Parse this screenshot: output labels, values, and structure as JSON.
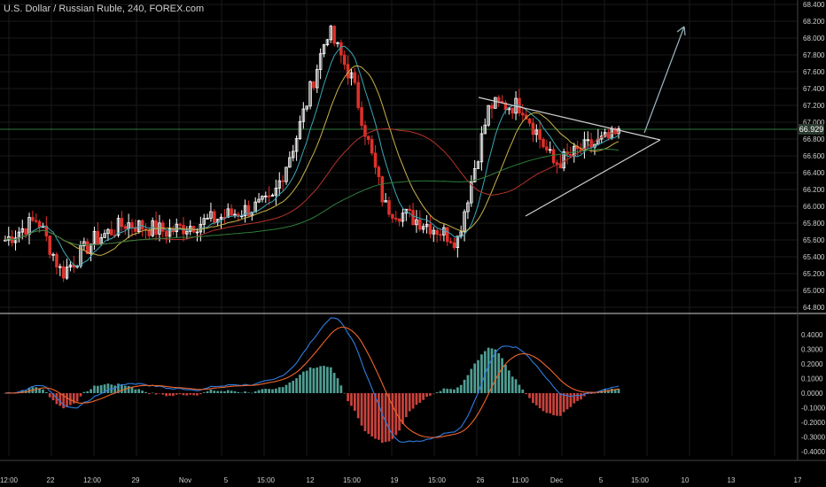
{
  "header": {
    "title": "U.S. Dollar / Russian Ruble, 240, FOREX.com"
  },
  "last_price_label": "66.929",
  "colors": {
    "up": "#ffffff",
    "down": "#e0312b",
    "ma1": "#3ba6b8",
    "ma2": "#c8b44a",
    "ma3": "#b5322b",
    "ma4": "#2e7d3a",
    "macd": "#2f7de1",
    "signal": "#f0652a",
    "hist_pos": "#4f9e93",
    "hist_neg": "#c9423c",
    "trendline": "#cfcfcf",
    "grid": "#1a1a1a"
  },
  "chart_data": [
    {
      "type": "candlestick",
      "title": "U.S. Dollar / Russian Ruble, 240, FOREX.com",
      "y_ticks": [
        "64.800",
        "65.000",
        "65.200",
        "65.400",
        "65.600",
        "65.800",
        "66.000",
        "66.200",
        "66.400",
        "66.600",
        "66.800",
        "67.000",
        "67.200",
        "67.400",
        "67.600",
        "67.800",
        "68.000",
        "68.200",
        "68.400"
      ],
      "ylim": [
        64.8,
        68.4
      ],
      "last_price": 66.929,
      "x_ticks": [
        "12:00",
        "22",
        "12:00",
        "29",
        "Nov",
        "5",
        "15:00",
        "12",
        "15:00",
        "19",
        "15:00",
        "26",
        "11:00",
        "Dec",
        "5",
        "15:00",
        "10",
        "13",
        "17"
      ],
      "series_outline": [
        {
          "t": 0,
          "price": 65.6
        },
        {
          "t": 0.04,
          "price": 65.85
        },
        {
          "t": 0.07,
          "price": 65.2
        },
        {
          "t": 0.11,
          "price": 65.6
        },
        {
          "t": 0.15,
          "price": 65.8
        },
        {
          "t": 0.2,
          "price": 65.7
        },
        {
          "t": 0.26,
          "price": 65.85
        },
        {
          "t": 0.33,
          "price": 66.05
        },
        {
          "t": 0.36,
          "price": 66.8
        },
        {
          "t": 0.4,
          "price": 68.1
        },
        {
          "t": 0.43,
          "price": 67.5
        },
        {
          "t": 0.47,
          "price": 66.0
        },
        {
          "t": 0.52,
          "price": 65.8
        },
        {
          "t": 0.56,
          "price": 65.6
        },
        {
          "t": 0.6,
          "price": 67.2
        },
        {
          "t": 0.64,
          "price": 67.2
        },
        {
          "t": 0.68,
          "price": 66.5
        },
        {
          "t": 0.72,
          "price": 66.7
        },
        {
          "t": 0.76,
          "price": 66.85
        }
      ],
      "annotations": [
        "symmetrical triangle",
        "breakout arrow"
      ]
    },
    {
      "type": "macd",
      "y_ticks": [
        "-0.4000",
        "-0.3000",
        "-0.2000",
        "-0.1000",
        "0.0000",
        "0.1000",
        "0.2000",
        "0.3000",
        "0.4000"
      ],
      "ylim": [
        -0.4,
        0.5
      ]
    }
  ]
}
